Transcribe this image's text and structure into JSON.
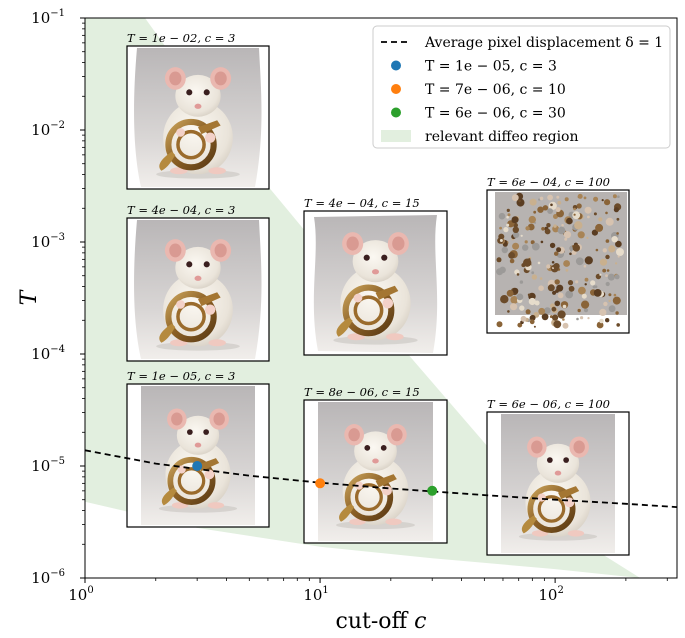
{
  "chart_data": {
    "type": "scatter",
    "xscale": "log",
    "yscale": "log",
    "xlim": [
      1,
      330
    ],
    "ylim": [
      1e-06,
      0.1
    ],
    "xlabel": "cut-off c",
    "ylabel": "T",
    "x_ticks": [
      {
        "value": 1,
        "base": "10",
        "exp": "0"
      },
      {
        "value": 10,
        "base": "10",
        "exp": "1"
      },
      {
        "value": 100,
        "base": "10",
        "exp": "2"
      }
    ],
    "y_ticks": [
      {
        "value": 1e-06,
        "base": "10",
        "exp": "−6"
      },
      {
        "value": 1e-05,
        "base": "10",
        "exp": "−5"
      },
      {
        "value": 0.0001,
        "base": "10",
        "exp": "−4"
      },
      {
        "value": 0.001,
        "base": "10",
        "exp": "−3"
      },
      {
        "value": 0.01,
        "base": "10",
        "exp": "−2"
      },
      {
        "value": 0.1,
        "base": "10",
        "exp": "−1"
      }
    ],
    "dashed_line": {
      "label": "Average pixel displacement δ = 1",
      "x": [
        1,
        2,
        5,
        10,
        20,
        50,
        100,
        200,
        330
      ],
      "y": [
        1.38e-05,
        1.05e-05,
        8.2e-06,
        7.1e-06,
        6.3e-06,
        5.5e-06,
        5e-06,
        4.6e-06,
        4.3e-06
      ]
    },
    "points": [
      {
        "label": "T = 1e − 05, c = 3",
        "x": 3,
        "y": 1e-05,
        "color": "#1f77b4"
      },
      {
        "label": "T = 7e − 06, c = 10",
        "x": 10,
        "y": 7e-06,
        "color": "#ff7f0e"
      },
      {
        "label": "T = 6e − 06, c = 30",
        "x": 30,
        "y": 6e-06,
        "color": "#2ca02c"
      }
    ],
    "region": {
      "label": "relevant diffeo region",
      "color": "#e2efdf",
      "upper": {
        "x": [
          1,
          1.8,
          5,
          20,
          100,
          230
        ],
        "y": [
          0.1,
          0.1,
          0.005,
          0.00015,
          3e-06,
          1e-06
        ]
      },
      "lower": {
        "x": [
          1,
          3,
          10,
          30,
          100,
          230
        ],
        "y": [
          4.8e-06,
          2.8e-06,
          1.9e-06,
          1.5e-06,
          1.2e-06,
          1e-06
        ]
      }
    },
    "thumbnails": [
      {
        "label": "T = 1e − 02, c = 3",
        "style": "clean",
        "stretch": "bulge"
      },
      {
        "label": "T = 4e − 04, c = 3",
        "style": "clean",
        "stretch": "bulge"
      },
      {
        "label": "T = 1e − 05, c = 3",
        "style": "clean",
        "stretch": "none"
      },
      {
        "label": "T = 4e − 04, c = 15",
        "style": "clean",
        "stretch": "wavy"
      },
      {
        "label": "T = 8e − 06, c = 15",
        "style": "clean",
        "stretch": "none"
      },
      {
        "label": "T = 6e − 04, c = 100",
        "style": "noisy",
        "stretch": "none"
      },
      {
        "label": "T = 6e − 06, c = 100",
        "style": "clean",
        "stretch": "none"
      }
    ]
  }
}
